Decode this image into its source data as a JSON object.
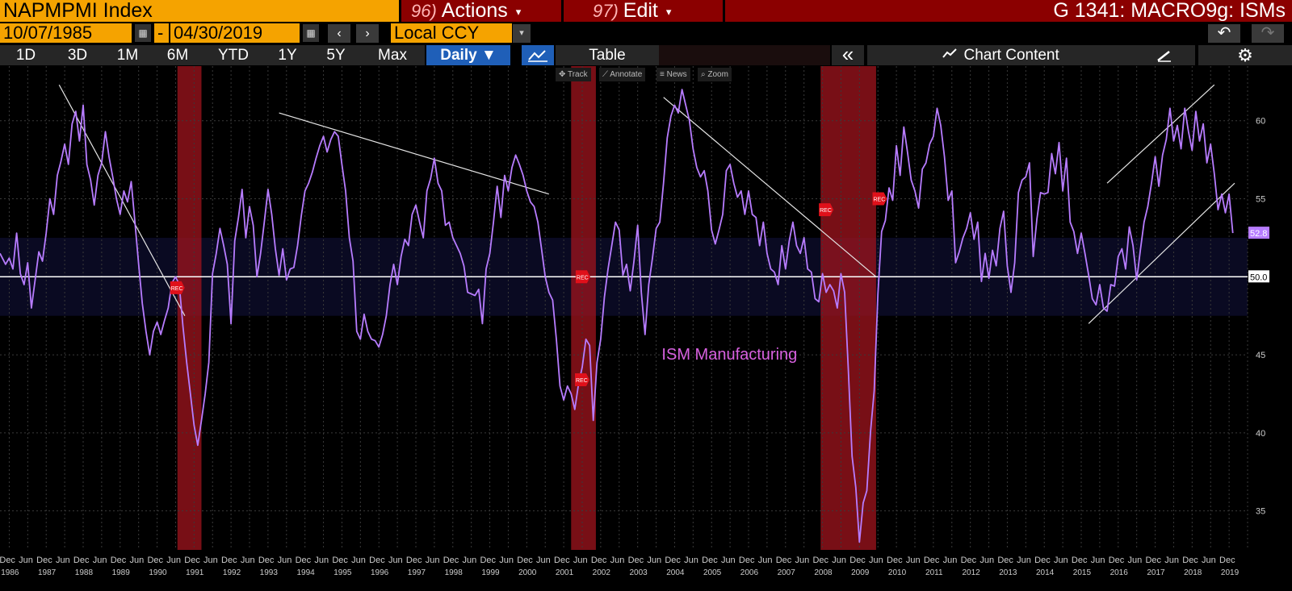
{
  "header": {
    "ticker": "NAPMPMI Index",
    "actions_num": "96)",
    "actions_label": "Actions",
    "edit_num": "97)",
    "edit_label": "Edit",
    "chart_id": "G 1341: MACRO9g: ISMs"
  },
  "dates": {
    "start": "10/07/1985",
    "separator": "-",
    "end": "04/30/2019",
    "currency": "Local CCY"
  },
  "icons": {
    "prev": "‹",
    "next": "›",
    "undo": "↶",
    "redo": "↷",
    "collapse": "«",
    "settings": "⚙",
    "calendar": "▦",
    "caret": "▾"
  },
  "periods": [
    "1D",
    "3D",
    "1M",
    "6M",
    "YTD",
    "1Y",
    "5Y",
    "Max"
  ],
  "frequency": "Daily ▼",
  "table_label": "Table",
  "chart_content_label": "Chart Content",
  "chart_controls": [
    "Track",
    "Annotate",
    "News",
    "Zoom"
  ],
  "colors": {
    "line": "#b77cff",
    "recession": "#a0141e",
    "annotation": "#d861e0",
    "last_value_bg": "#b77cff",
    "header_orange": "#f5a300",
    "header_red": "#8b0000",
    "active_tab": "#1f5fb8"
  },
  "chart_data": {
    "type": "line",
    "series": [
      {
        "name": "ISM Manufacturing"
      }
    ],
    "annotation": "ISM Manufacturing",
    "x_range": [
      1985.75,
      2019.5
    ],
    "ylim": [
      32.5,
      63.5
    ],
    "y_ticks": [
      35,
      40,
      45,
      50,
      55,
      60
    ],
    "y_tick_labels": [
      "35",
      "40",
      "45",
      "50",
      "55",
      "60"
    ],
    "reference_line": 50,
    "last_value": "52.8",
    "reference_label": "50.0",
    "highlight_band": [
      47.5,
      52.5
    ],
    "recession_label": "REC",
    "recessions": [
      [
        1990.55,
        1991.2
      ],
      [
        2001.2,
        2001.87
      ],
      [
        2007.95,
        2009.45
      ]
    ],
    "x_month_labels": [
      "Dec",
      "Jun",
      "Dec",
      "Jun",
      "Dec",
      "Jun",
      "Dec",
      "Jun",
      "Dec",
      "Jun",
      "Dec",
      "Jun",
      "Dec",
      "Jun",
      "Dec",
      "Jun",
      "Dec",
      "Jun",
      "Dec",
      "Jun",
      "Dec",
      "Jun",
      "Dec",
      "Jun",
      "Dec",
      "Jun",
      "Dec",
      "Jun",
      "Dec",
      "Jun",
      "Dec",
      "Jun",
      "Dec",
      "Jun",
      "Dec",
      "Jun",
      "Dec",
      "Jun",
      "Dec",
      "Jun",
      "Dec",
      "Jun",
      "Dec",
      "Jun",
      "Dec",
      "Jun",
      "Dec",
      "Jun",
      "Dec",
      "Jun",
      "Dec",
      "Jun",
      "Dec",
      "Jun",
      "Dec",
      "Jun",
      "Dec",
      "Jun",
      "Dec",
      "Jun",
      "Dec",
      "Jun",
      "Dec",
      "Jun",
      "Dec",
      "Jun",
      "Dec"
    ],
    "x_years": [
      "1986",
      "1987",
      "1988",
      "1989",
      "1990",
      "1991",
      "1992",
      "1993",
      "1994",
      "1995",
      "1996",
      "1997",
      "1998",
      "1999",
      "2000",
      "2001",
      "2002",
      "2003",
      "2004",
      "2005",
      "2006",
      "2007",
      "2008",
      "2009",
      "2010",
      "2011",
      "2012",
      "2013",
      "2014",
      "2015",
      "2016",
      "2017",
      "2018",
      "2019"
    ],
    "points": [
      [
        1985.75,
        51.5
      ],
      [
        1985.9,
        50.8
      ],
      [
        1986.0,
        51.2
      ],
      [
        1986.1,
        50.5
      ],
      [
        1986.2,
        52.8
      ],
      [
        1986.3,
        50.2
      ],
      [
        1986.4,
        49.5
      ],
      [
        1986.5,
        50.9
      ],
      [
        1986.6,
        48.0
      ],
      [
        1986.7,
        49.8
      ],
      [
        1986.8,
        51.6
      ],
      [
        1986.9,
        51.0
      ],
      [
        1987.0,
        52.8
      ],
      [
        1987.1,
        55.0
      ],
      [
        1987.2,
        54.0
      ],
      [
        1987.3,
        56.5
      ],
      [
        1987.4,
        57.4
      ],
      [
        1987.5,
        58.5
      ],
      [
        1987.6,
        57.2
      ],
      [
        1987.7,
        59.8
      ],
      [
        1987.8,
        60.6
      ],
      [
        1987.9,
        58.7
      ],
      [
        1988.0,
        61.0
      ],
      [
        1988.1,
        57.2
      ],
      [
        1988.2,
        56.2
      ],
      [
        1988.3,
        54.6
      ],
      [
        1988.4,
        56.5
      ],
      [
        1988.5,
        57.3
      ],
      [
        1988.6,
        59.3
      ],
      [
        1988.7,
        57.7
      ],
      [
        1988.8,
        56.4
      ],
      [
        1988.9,
        55.0
      ],
      [
        1989.0,
        54.0
      ],
      [
        1989.1,
        55.5
      ],
      [
        1989.2,
        54.8
      ],
      [
        1989.3,
        56.1
      ],
      [
        1989.4,
        53.5
      ],
      [
        1989.5,
        50.8
      ],
      [
        1989.6,
        48.3
      ],
      [
        1989.7,
        46.5
      ],
      [
        1989.8,
        45.0
      ],
      [
        1989.9,
        46.5
      ],
      [
        1990.0,
        47.1
      ],
      [
        1990.1,
        46.3
      ],
      [
        1990.2,
        47.2
      ],
      [
        1990.3,
        48.0
      ],
      [
        1990.4,
        49.6
      ],
      [
        1990.5,
        50.0
      ],
      [
        1990.6,
        49.5
      ],
      [
        1990.7,
        46.8
      ],
      [
        1990.8,
        44.5
      ],
      [
        1990.9,
        42.5
      ],
      [
        1991.0,
        40.5
      ],
      [
        1991.1,
        39.2
      ],
      [
        1991.2,
        40.8
      ],
      [
        1991.3,
        42.5
      ],
      [
        1991.4,
        44.5
      ],
      [
        1991.5,
        50.2
      ],
      [
        1991.6,
        51.5
      ],
      [
        1991.7,
        53.1
      ],
      [
        1991.8,
        52.0
      ],
      [
        1991.9,
        50.8
      ],
      [
        1992.0,
        47.0
      ],
      [
        1992.1,
        52.3
      ],
      [
        1992.2,
        53.8
      ],
      [
        1992.3,
        55.6
      ],
      [
        1992.4,
        52.5
      ],
      [
        1992.5,
        54.5
      ],
      [
        1992.6,
        53.3
      ],
      [
        1992.7,
        50.0
      ],
      [
        1992.8,
        51.5
      ],
      [
        1992.9,
        53.5
      ],
      [
        1993.0,
        55.6
      ],
      [
        1993.1,
        54.0
      ],
      [
        1993.2,
        51.8
      ],
      [
        1993.3,
        50.1
      ],
      [
        1993.4,
        51.8
      ],
      [
        1993.5,
        49.8
      ],
      [
        1993.6,
        50.5
      ],
      [
        1993.7,
        50.6
      ],
      [
        1993.8,
        52.0
      ],
      [
        1993.9,
        53.9
      ],
      [
        1994.0,
        55.5
      ],
      [
        1994.1,
        56.0
      ],
      [
        1994.2,
        56.7
      ],
      [
        1994.3,
        57.6
      ],
      [
        1994.4,
        58.4
      ],
      [
        1994.5,
        59.0
      ],
      [
        1994.6,
        58.0
      ],
      [
        1994.7,
        58.8
      ],
      [
        1994.8,
        59.3
      ],
      [
        1994.9,
        59.0
      ],
      [
        1995.0,
        57.2
      ],
      [
        1995.1,
        55.5
      ],
      [
        1995.2,
        52.5
      ],
      [
        1995.3,
        51.0
      ],
      [
        1995.4,
        46.5
      ],
      [
        1995.5,
        46.0
      ],
      [
        1995.6,
        47.6
      ],
      [
        1995.7,
        46.5
      ],
      [
        1995.8,
        46.0
      ],
      [
        1995.9,
        45.9
      ],
      [
        1996.0,
        45.5
      ],
      [
        1996.1,
        46.3
      ],
      [
        1996.2,
        47.5
      ],
      [
        1996.3,
        49.5
      ],
      [
        1996.4,
        50.8
      ],
      [
        1996.5,
        49.5
      ],
      [
        1996.6,
        51.3
      ],
      [
        1996.7,
        52.4
      ],
      [
        1996.8,
        52.0
      ],
      [
        1996.9,
        54.0
      ],
      [
        1997.0,
        54.6
      ],
      [
        1997.1,
        53.5
      ],
      [
        1997.2,
        52.5
      ],
      [
        1997.3,
        55.5
      ],
      [
        1997.4,
        56.3
      ],
      [
        1997.5,
        57.6
      ],
      [
        1997.6,
        56.0
      ],
      [
        1997.7,
        55.5
      ],
      [
        1997.8,
        53.3
      ],
      [
        1997.9,
        53.5
      ],
      [
        1998.0,
        52.5
      ],
      [
        1998.1,
        52.0
      ],
      [
        1998.2,
        51.5
      ],
      [
        1998.3,
        50.7
      ],
      [
        1998.4,
        49.0
      ],
      [
        1998.5,
        48.9
      ],
      [
        1998.6,
        48.8
      ],
      [
        1998.7,
        49.2
      ],
      [
        1998.8,
        47.0
      ],
      [
        1998.9,
        50.5
      ],
      [
        1999.0,
        51.5
      ],
      [
        1999.1,
        53.5
      ],
      [
        1999.2,
        55.8
      ],
      [
        1999.3,
        53.8
      ],
      [
        1999.4,
        56.5
      ],
      [
        1999.5,
        55.5
      ],
      [
        1999.6,
        57.0
      ],
      [
        1999.7,
        57.8
      ],
      [
        1999.8,
        57.2
      ],
      [
        1999.9,
        56.5
      ],
      [
        2000.0,
        55.5
      ],
      [
        2000.1,
        54.8
      ],
      [
        2000.2,
        54.5
      ],
      [
        2000.3,
        53.5
      ],
      [
        2000.4,
        51.8
      ],
      [
        2000.5,
        50.0
      ],
      [
        2000.6,
        49.0
      ],
      [
        2000.7,
        48.5
      ],
      [
        2000.8,
        46.0
      ],
      [
        2000.9,
        43.0
      ],
      [
        2001.0,
        42.1
      ],
      [
        2001.1,
        43.0
      ],
      [
        2001.2,
        42.5
      ],
      [
        2001.3,
        41.5
      ],
      [
        2001.4,
        43.1
      ],
      [
        2001.5,
        44.2
      ],
      [
        2001.6,
        46.0
      ],
      [
        2001.7,
        45.6
      ],
      [
        2001.8,
        40.8
      ],
      [
        2001.9,
        44.5
      ],
      [
        2002.0,
        46.0
      ],
      [
        2002.1,
        48.7
      ],
      [
        2002.2,
        50.5
      ],
      [
        2002.3,
        52.0
      ],
      [
        2002.4,
        53.5
      ],
      [
        2002.5,
        53.0
      ],
      [
        2002.6,
        50.1
      ],
      [
        2002.7,
        50.8
      ],
      [
        2002.8,
        49.1
      ],
      [
        2002.9,
        51.0
      ],
      [
        2003.0,
        53.3
      ],
      [
        2003.1,
        49.0
      ],
      [
        2003.2,
        46.3
      ],
      [
        2003.3,
        49.5
      ],
      [
        2003.4,
        51.2
      ],
      [
        2003.5,
        53.1
      ],
      [
        2003.6,
        53.5
      ],
      [
        2003.7,
        56.0
      ],
      [
        2003.8,
        58.9
      ],
      [
        2003.9,
        60.3
      ],
      [
        2004.0,
        61.0
      ],
      [
        2004.1,
        60.5
      ],
      [
        2004.2,
        62.0
      ],
      [
        2004.3,
        61.0
      ],
      [
        2004.4,
        60.0
      ],
      [
        2004.5,
        58.2
      ],
      [
        2004.6,
        57.0
      ],
      [
        2004.7,
        56.4
      ],
      [
        2004.8,
        56.8
      ],
      [
        2004.9,
        55.5
      ],
      [
        2005.0,
        53.0
      ],
      [
        2005.1,
        52.1
      ],
      [
        2005.2,
        53.0
      ],
      [
        2005.3,
        54.0
      ],
      [
        2005.4,
        56.8
      ],
      [
        2005.5,
        57.2
      ],
      [
        2005.6,
        56.0
      ],
      [
        2005.7,
        55.1
      ],
      [
        2005.8,
        55.5
      ],
      [
        2005.9,
        54.0
      ],
      [
        2006.0,
        55.5
      ],
      [
        2006.1,
        54.0
      ],
      [
        2006.2,
        53.8
      ],
      [
        2006.3,
        52.0
      ],
      [
        2006.4,
        53.5
      ],
      [
        2006.5,
        51.5
      ],
      [
        2006.6,
        50.5
      ],
      [
        2006.7,
        50.3
      ],
      [
        2006.8,
        49.5
      ],
      [
        2006.9,
        52.0
      ],
      [
        2007.0,
        50.5
      ],
      [
        2007.1,
        52.3
      ],
      [
        2007.2,
        53.5
      ],
      [
        2007.3,
        52.0
      ],
      [
        2007.4,
        51.5
      ],
      [
        2007.5,
        52.5
      ],
      [
        2007.6,
        50.5
      ],
      [
        2007.7,
        50.3
      ],
      [
        2007.8,
        48.6
      ],
      [
        2007.9,
        48.4
      ],
      [
        2008.0,
        50.2
      ],
      [
        2008.1,
        49.0
      ],
      [
        2008.2,
        49.5
      ],
      [
        2008.3,
        49.1
      ],
      [
        2008.4,
        48.0
      ],
      [
        2008.5,
        50.2
      ],
      [
        2008.6,
        49.0
      ],
      [
        2008.7,
        44.0
      ],
      [
        2008.8,
        38.5
      ],
      [
        2008.9,
        36.5
      ],
      [
        2009.0,
        33.0
      ],
      [
        2009.1,
        35.5
      ],
      [
        2009.2,
        36.3
      ],
      [
        2009.3,
        40.1
      ],
      [
        2009.4,
        42.7
      ],
      [
        2009.5,
        48.9
      ],
      [
        2009.6,
        52.9
      ],
      [
        2009.7,
        53.6
      ],
      [
        2009.8,
        55.7
      ],
      [
        2009.9,
        54.9
      ],
      [
        2010.0,
        58.4
      ],
      [
        2010.1,
        56.5
      ],
      [
        2010.2,
        59.6
      ],
      [
        2010.3,
        58.0
      ],
      [
        2010.4,
        56.2
      ],
      [
        2010.5,
        55.5
      ],
      [
        2010.6,
        54.4
      ],
      [
        2010.7,
        56.9
      ],
      [
        2010.8,
        57.3
      ],
      [
        2010.9,
        58.5
      ],
      [
        2011.0,
        59.0
      ],
      [
        2011.1,
        60.8
      ],
      [
        2011.2,
        59.7
      ],
      [
        2011.3,
        57.7
      ],
      [
        2011.4,
        54.9
      ],
      [
        2011.5,
        55.5
      ],
      [
        2011.6,
        50.9
      ],
      [
        2011.7,
        51.6
      ],
      [
        2011.8,
        52.5
      ],
      [
        2011.9,
        53.1
      ],
      [
        2012.0,
        54.1
      ],
      [
        2012.1,
        52.4
      ],
      [
        2012.2,
        53.5
      ],
      [
        2012.3,
        49.7
      ],
      [
        2012.4,
        51.5
      ],
      [
        2012.5,
        49.9
      ],
      [
        2012.6,
        51.7
      ],
      [
        2012.7,
        50.7
      ],
      [
        2012.8,
        53.1
      ],
      [
        2012.9,
        54.2
      ],
      [
        2013.0,
        50.7
      ],
      [
        2013.1,
        49.0
      ],
      [
        2013.2,
        50.9
      ],
      [
        2013.3,
        55.4
      ],
      [
        2013.4,
        56.2
      ],
      [
        2013.5,
        56.4
      ],
      [
        2013.6,
        57.3
      ],
      [
        2013.7,
        51.3
      ],
      [
        2013.8,
        53.7
      ],
      [
        2013.9,
        55.4
      ],
      [
        2014.0,
        55.3
      ],
      [
        2014.1,
        55.4
      ],
      [
        2014.2,
        57.9
      ],
      [
        2014.3,
        56.6
      ],
      [
        2014.4,
        58.6
      ],
      [
        2014.5,
        55.5
      ],
      [
        2014.6,
        57.6
      ],
      [
        2014.7,
        53.5
      ],
      [
        2014.8,
        52.9
      ],
      [
        2014.9,
        51.5
      ],
      [
        2015.0,
        52.8
      ],
      [
        2015.1,
        51.5
      ],
      [
        2015.2,
        50.1
      ],
      [
        2015.3,
        48.6
      ],
      [
        2015.4,
        48.2
      ],
      [
        2015.5,
        49.5
      ],
      [
        2015.6,
        48.0
      ],
      [
        2015.7,
        47.8
      ],
      [
        2015.8,
        49.5
      ],
      [
        2015.9,
        49.4
      ],
      [
        2016.0,
        51.3
      ],
      [
        2016.1,
        51.8
      ],
      [
        2016.2,
        50.5
      ],
      [
        2016.3,
        53.2
      ],
      [
        2016.4,
        52.0
      ],
      [
        2016.5,
        49.8
      ],
      [
        2016.6,
        51.7
      ],
      [
        2016.7,
        53.5
      ],
      [
        2016.8,
        54.5
      ],
      [
        2016.9,
        56.0
      ],
      [
        2017.0,
        57.7
      ],
      [
        2017.1,
        55.8
      ],
      [
        2017.2,
        57.8
      ],
      [
        2017.3,
        58.8
      ],
      [
        2017.4,
        60.8
      ],
      [
        2017.5,
        58.7
      ],
      [
        2017.6,
        59.7
      ],
      [
        2017.7,
        58.2
      ],
      [
        2017.8,
        60.8
      ],
      [
        2017.9,
        59.3
      ],
      [
        2018.0,
        58.1
      ],
      [
        2018.1,
        60.6
      ],
      [
        2018.2,
        58.7
      ],
      [
        2018.3,
        59.8
      ],
      [
        2018.4,
        57.3
      ],
      [
        2018.5,
        58.5
      ],
      [
        2018.6,
        56.6
      ],
      [
        2018.7,
        54.3
      ],
      [
        2018.8,
        55.3
      ],
      [
        2018.9,
        54.1
      ],
      [
        2019.0,
        55.3
      ],
      [
        2019.1,
        52.8
      ]
    ],
    "trendlines": [
      [
        1987.35,
        62.3,
        1990.75,
        47.5
      ],
      [
        1993.3,
        60.5,
        2000.6,
        55.3
      ],
      [
        2003.7,
        61.5,
        2009.45,
        50.0
      ],
      [
        2015.2,
        47.0,
        2019.15,
        56.0
      ],
      [
        2015.7,
        56.0,
        2018.6,
        62.3
      ]
    ],
    "event_markers": [
      [
        1990.45,
        1990.65
      ],
      [
        1990.55,
        49.3
      ],
      [
        2001.5,
        43.4
      ],
      [
        2001.52,
        50.0
      ],
      [
        2008.1,
        54.3
      ],
      [
        2009.55,
        55.0
      ]
    ]
  }
}
